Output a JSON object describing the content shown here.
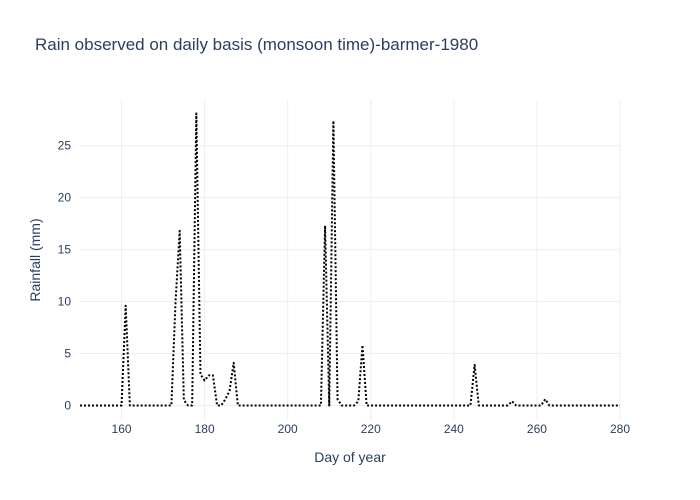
{
  "chart_data": {
    "type": "line",
    "title": "Rain observed on daily basis (monsoon time)-barmer-1980",
    "xlabel": "Day of year",
    "ylabel": "Rainfall (mm)",
    "xlim": [
      150,
      280
    ],
    "ylim": [
      -1.4,
      29.4
    ],
    "x_ticks": [
      160,
      180,
      200,
      220,
      240,
      260,
      280
    ],
    "y_ticks": [
      0,
      5,
      10,
      15,
      20,
      25
    ],
    "grid": true,
    "line_style": "dotted",
    "line_color": "#000000",
    "series": [
      {
        "x": [
          150,
          151,
          152,
          153,
          154,
          155,
          156,
          157,
          158,
          159,
          160,
          161,
          162,
          163,
          164,
          165,
          166,
          167,
          168,
          169,
          170,
          171,
          172,
          173,
          174,
          175,
          176,
          177,
          178,
          179,
          180,
          181,
          182,
          183,
          184,
          185,
          186,
          187,
          188,
          189,
          190,
          191,
          192,
          193,
          194,
          195,
          196,
          197,
          198,
          199,
          200,
          201,
          202,
          203,
          204,
          205,
          206,
          207,
          208,
          209,
          210,
          211,
          212,
          213,
          214,
          215,
          216,
          217,
          218,
          219,
          220,
          221,
          222,
          223,
          224,
          225,
          226,
          227,
          228,
          229,
          230,
          231,
          232,
          233,
          234,
          235,
          236,
          237,
          238,
          239,
          240,
          241,
          242,
          243,
          244,
          245,
          246,
          247,
          248,
          249,
          250,
          251,
          252,
          253,
          254,
          255,
          256,
          257,
          258,
          259,
          260,
          261,
          262,
          263,
          264,
          265,
          266,
          267,
          268,
          269,
          270,
          271,
          272,
          273,
          274,
          275,
          276,
          277,
          278,
          279,
          280
        ],
        "y": [
          0,
          0,
          0,
          0,
          0,
          0,
          0,
          0,
          0,
          0,
          0,
          9.6,
          0,
          0,
          0,
          0,
          0,
          0,
          0,
          0,
          0,
          0,
          0,
          10,
          16.8,
          0.5,
          0,
          0,
          28.1,
          3,
          2.4,
          2.9,
          2.9,
          0,
          0,
          0.6,
          1.4,
          4.1,
          0,
          0,
          0,
          0,
          0,
          0,
          0,
          0,
          0,
          0,
          0,
          0,
          0,
          0,
          0,
          0,
          0,
          0,
          0,
          0,
          0,
          17.3,
          0,
          27.4,
          0.6,
          0,
          0,
          0,
          0,
          0.4,
          5.8,
          0,
          0,
          0,
          0,
          0,
          0,
          0,
          0,
          0,
          0,
          0,
          0,
          0,
          0,
          0,
          0,
          0,
          0,
          0,
          0,
          0,
          0,
          0,
          0,
          0,
          0,
          3.9,
          0,
          0,
          0,
          0,
          0,
          0,
          0,
          0,
          0.4,
          0,
          0,
          0,
          0,
          0,
          0,
          0,
          0.6,
          0,
          0,
          0,
          0,
          0,
          0,
          0,
          0,
          0,
          0,
          0,
          0,
          0,
          0,
          0,
          0,
          0,
          0
        ]
      }
    ]
  }
}
